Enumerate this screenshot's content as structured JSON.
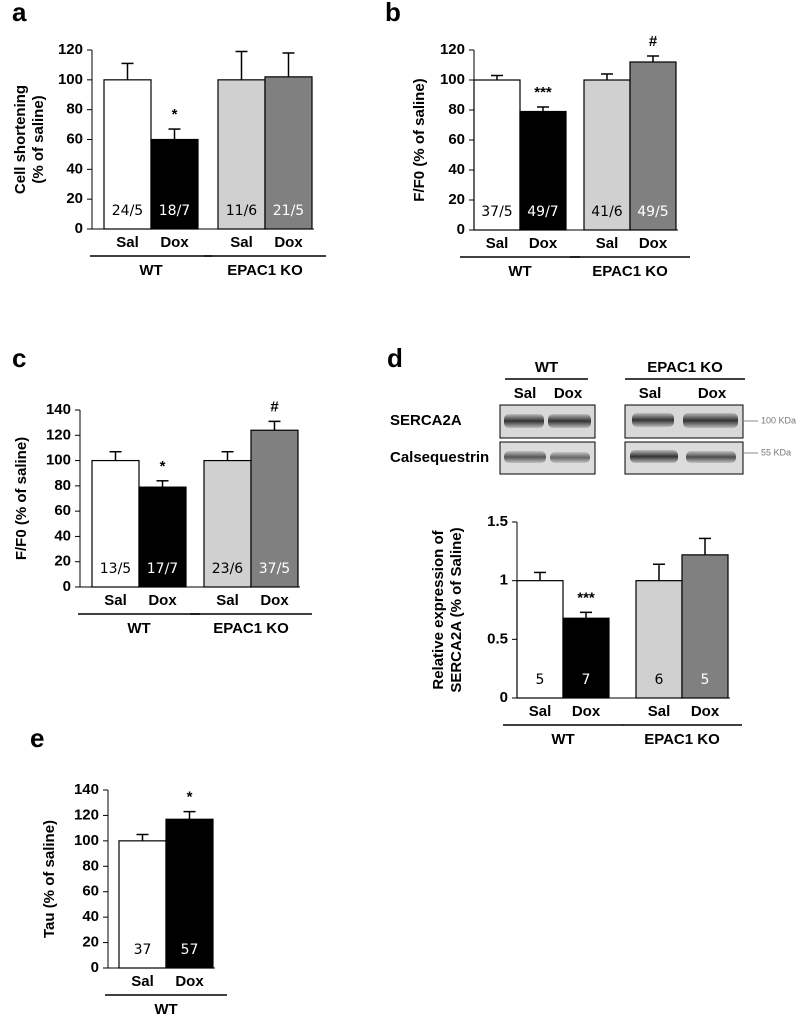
{
  "chart_data": [
    {
      "type": "bar",
      "panel": "a",
      "y_label": [
        "Cell shortening",
        "(% of saline)"
      ],
      "categories": [
        "Sal",
        "Dox",
        "Sal",
        "Dox"
      ],
      "groups": [
        "WT",
        "EPAC1 KO"
      ],
      "values": [
        100,
        60,
        100,
        102
      ],
      "errors": [
        11,
        7,
        19,
        16
      ],
      "colors": [
        "#ffffff",
        "#000000",
        "#d0d0d0",
        "#808080"
      ],
      "n_labels": [
        "24/5",
        "18/7",
        "11/6",
        "21/5"
      ],
      "annotations": [
        null,
        "*",
        null,
        null
      ],
      "ylim": [
        0,
        120
      ],
      "yticks": [
        0,
        20,
        40,
        60,
        80,
        100,
        120
      ]
    },
    {
      "type": "bar",
      "panel": "b",
      "y_label": [
        "F/F0 (% of saline)"
      ],
      "categories": [
        "Sal",
        "Dox",
        "Sal",
        "Dox"
      ],
      "groups": [
        "WT",
        "EPAC1 KO"
      ],
      "values": [
        100,
        79,
        100,
        112
      ],
      "errors": [
        3,
        3,
        4,
        4
      ],
      "colors": [
        "#ffffff",
        "#000000",
        "#d0d0d0",
        "#808080"
      ],
      "n_labels": [
        "37/5",
        "49/7",
        "41/6",
        "49/5"
      ],
      "annotations": [
        null,
        "***",
        null,
        "#"
      ],
      "ylim": [
        0,
        120
      ],
      "yticks": [
        0,
        20,
        40,
        60,
        80,
        100,
        120
      ]
    },
    {
      "type": "bar",
      "panel": "c",
      "y_label": [
        "F/F0 (% of saline)"
      ],
      "categories": [
        "Sal",
        "Dox",
        "Sal",
        "Dox"
      ],
      "groups": [
        "WT",
        "EPAC1 KO"
      ],
      "values": [
        100,
        79,
        100,
        124
      ],
      "errors": [
        7,
        5,
        7,
        7
      ],
      "colors": [
        "#ffffff",
        "#000000",
        "#d0d0d0",
        "#808080"
      ],
      "n_labels": [
        "13/5",
        "17/7",
        "23/6",
        "37/5"
      ],
      "annotations": [
        null,
        "*",
        null,
        "#"
      ],
      "ylim": [
        0,
        140
      ],
      "yticks": [
        0,
        20,
        40,
        60,
        80,
        100,
        120,
        140
      ]
    },
    {
      "type": "bar",
      "panel": "d",
      "y_label": [
        "Relative expression of",
        "SERCA2A (% of Saline)"
      ],
      "categories": [
        "Sal",
        "Dox",
        "Sal",
        "Dox"
      ],
      "groups": [
        "WT",
        "EPAC1 KO"
      ],
      "values": [
        1,
        0.68,
        1,
        1.22
      ],
      "errors": [
        0.07,
        0.05,
        0.14,
        0.14
      ],
      "colors": [
        "#ffffff",
        "#000000",
        "#d0d0d0",
        "#808080"
      ],
      "n_labels": [
        "5",
        "7",
        "6",
        "5"
      ],
      "annotations": [
        null,
        "***",
        null,
        null
      ],
      "ylim": [
        0,
        1.5
      ],
      "yticks": [
        0,
        0.5,
        1,
        1.5
      ],
      "blot": {
        "groups": [
          "WT",
          "EPAC1 KO"
        ],
        "lanes": [
          "Sal",
          "Dox",
          "Sal",
          "Dox"
        ],
        "rows": [
          "SERCA2A",
          "Calsequestrin"
        ],
        "markers": [
          "100 KDa",
          "55 KDa"
        ]
      }
    },
    {
      "type": "bar",
      "panel": "e",
      "y_label": [
        "Tau (% of saline)"
      ],
      "categories": [
        "Sal",
        "Dox"
      ],
      "groups": [
        "WT"
      ],
      "values": [
        100,
        117
      ],
      "errors": [
        5,
        6
      ],
      "colors": [
        "#ffffff",
        "#000000"
      ],
      "n_labels": [
        "37",
        "57"
      ],
      "annotations": [
        null,
        "*"
      ],
      "ylim": [
        0,
        140
      ],
      "yticks": [
        0,
        20,
        40,
        60,
        80,
        100,
        120,
        140
      ]
    }
  ]
}
